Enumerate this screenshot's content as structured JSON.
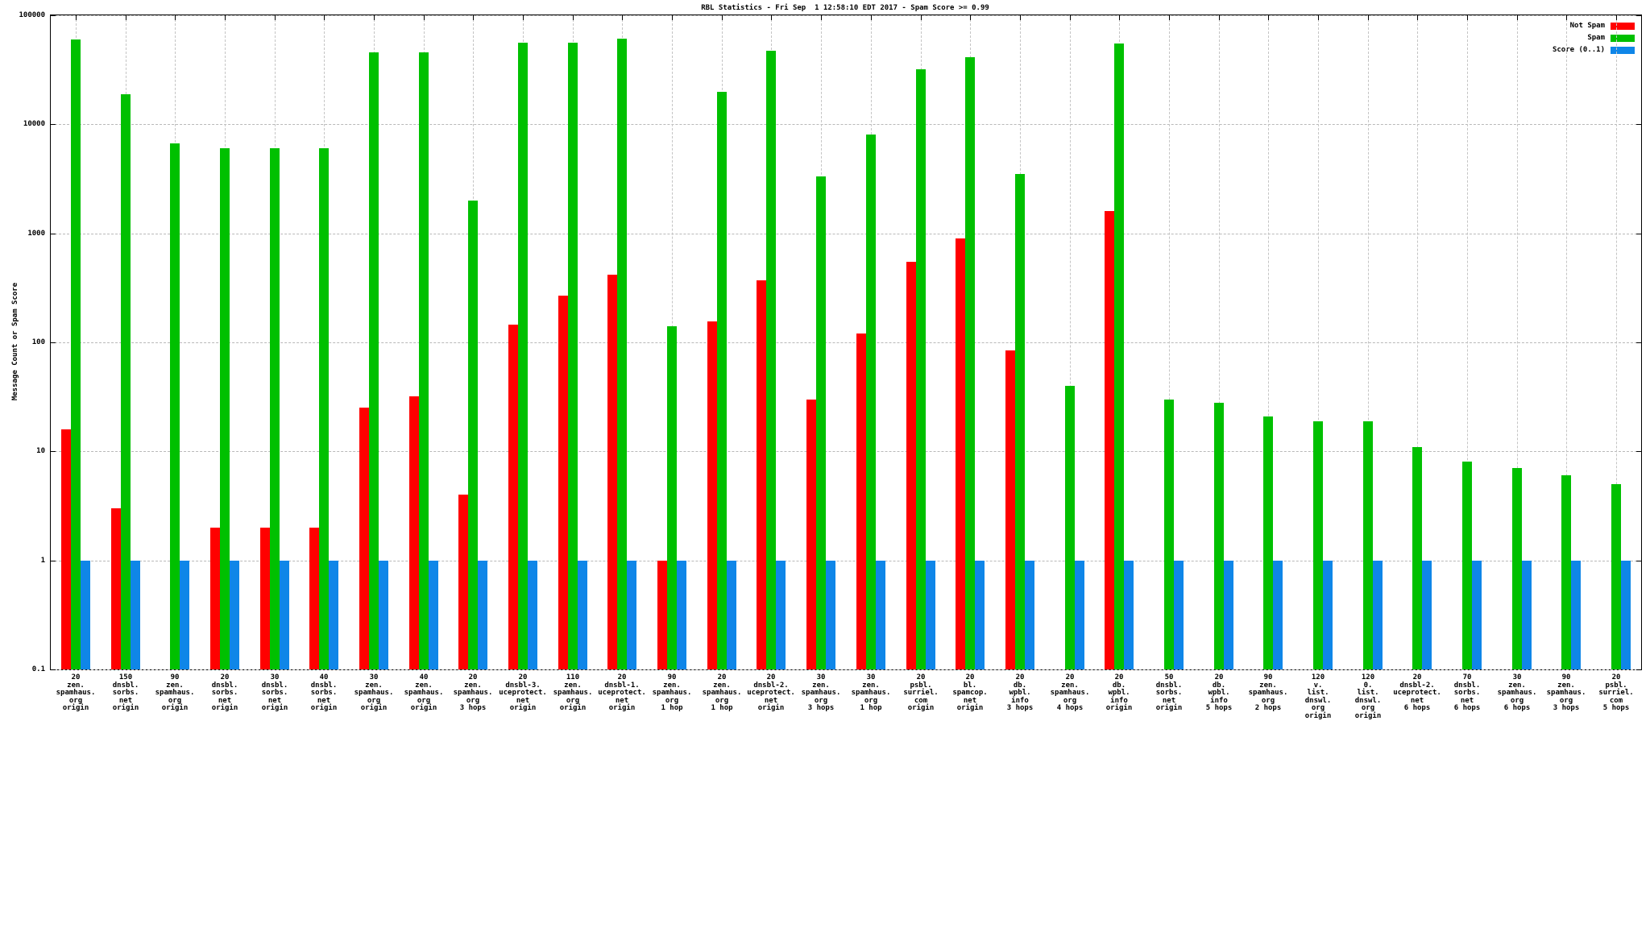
{
  "chart_data": {
    "type": "bar",
    "title": "RBL Statistics - Fri Sep  1 12:58:10 EDT 2017 - Spam Score >= 0.99",
    "ylabel": "Message Count or Spam Score",
    "yscale": "log",
    "ylim": [
      0.1,
      100000
    ],
    "yticks": [
      100000,
      10000,
      1000,
      100,
      10,
      1,
      0.1
    ],
    "grid": true,
    "legend_position": "top-right",
    "legend": [
      {
        "label": "Not Spam",
        "color": "#ff0000",
        "key": "not_spam"
      },
      {
        "label": "Spam",
        "color": "#00c000",
        "key": "spam"
      },
      {
        "label": "Score (0..1)",
        "color": "#0f86e8",
        "key": "score"
      }
    ],
    "groups": [
      {
        "label_lines": [
          "20",
          "zen.",
          "spamhaus.",
          "org",
          "origin"
        ],
        "not_spam": 16,
        "spam": 60000,
        "score": 1
      },
      {
        "label_lines": [
          "150",
          "dnsbl.",
          "sorbs.",
          "net",
          "origin"
        ],
        "not_spam": 3,
        "spam": 19000,
        "score": 1
      },
      {
        "label_lines": [
          "90",
          "zen.",
          "spamhaus.",
          "org",
          "origin"
        ],
        "not_spam": 0,
        "spam": 6700,
        "score": 1
      },
      {
        "label_lines": [
          "20",
          "dnsbl.",
          "sorbs.",
          "net",
          "origin"
        ],
        "not_spam": 2,
        "spam": 6000,
        "score": 1
      },
      {
        "label_lines": [
          "30",
          "dnsbl.",
          "sorbs.",
          "net",
          "origin"
        ],
        "not_spam": 2,
        "spam": 6000,
        "score": 1
      },
      {
        "label_lines": [
          "40",
          "dnsbl.",
          "sorbs.",
          "net",
          "origin"
        ],
        "not_spam": 2,
        "spam": 6000,
        "score": 1
      },
      {
        "label_lines": [
          "30",
          "zen.",
          "spamhaus.",
          "org",
          "origin"
        ],
        "not_spam": 25,
        "spam": 46000,
        "score": 1
      },
      {
        "label_lines": [
          "40",
          "zen.",
          "spamhaus.",
          "org",
          "origin"
        ],
        "not_spam": 32,
        "spam": 46000,
        "score": 1
      },
      {
        "label_lines": [
          "20",
          "zen.",
          "spamhaus.",
          "org",
          "3 hops"
        ],
        "not_spam": 4,
        "spam": 2000,
        "score": 1
      },
      {
        "label_lines": [
          "20",
          "dnsbl-3.",
          "uceprotect.",
          "net",
          "origin"
        ],
        "not_spam": 145,
        "spam": 56000,
        "score": 1
      },
      {
        "label_lines": [
          "110",
          "zen.",
          "spamhaus.",
          "org",
          "origin"
        ],
        "not_spam": 270,
        "spam": 56000,
        "score": 1
      },
      {
        "label_lines": [
          "20",
          "dnsbl-1.",
          "uceprotect.",
          "net",
          "origin"
        ],
        "not_spam": 420,
        "spam": 61000,
        "score": 1
      },
      {
        "label_lines": [
          "90",
          "zen.",
          "spamhaus.",
          "org",
          "1 hop"
        ],
        "not_spam": 1,
        "spam": 140,
        "score": 1
      },
      {
        "label_lines": [
          "20",
          "zen.",
          "spamhaus.",
          "org",
          "1 hop"
        ],
        "not_spam": 155,
        "spam": 20000,
        "score": 1
      },
      {
        "label_lines": [
          "20",
          "dnsbl-2.",
          "uceprotect.",
          "net",
          "origin"
        ],
        "not_spam": 370,
        "spam": 47000,
        "score": 1
      },
      {
        "label_lines": [
          "30",
          "zen.",
          "spamhaus.",
          "org",
          "3 hops"
        ],
        "not_spam": 30,
        "spam": 3300,
        "score": 1
      },
      {
        "label_lines": [
          "30",
          "zen.",
          "spamhaus.",
          "org",
          "1 hop"
        ],
        "not_spam": 120,
        "spam": 8000,
        "score": 1
      },
      {
        "label_lines": [
          "20",
          "psbl.",
          "surriel.",
          "com",
          "origin"
        ],
        "not_spam": 550,
        "spam": 32000,
        "score": 1
      },
      {
        "label_lines": [
          "20",
          "bl.",
          "spamcop.",
          "net",
          "origin"
        ],
        "not_spam": 900,
        "spam": 41000,
        "score": 1
      },
      {
        "label_lines": [
          "20",
          "db.",
          "wpbl.",
          "info",
          "3 hops"
        ],
        "not_spam": 85,
        "spam": 3500,
        "score": 1
      },
      {
        "label_lines": [
          "20",
          "zen.",
          "spamhaus.",
          "org",
          "4 hops"
        ],
        "not_spam": 0,
        "spam": 40,
        "score": 1
      },
      {
        "label_lines": [
          "20",
          "db.",
          "wpbl.",
          "info",
          "origin"
        ],
        "not_spam": 1600,
        "spam": 55000,
        "score": 1
      },
      {
        "label_lines": [
          "50",
          "dnsbl.",
          "sorbs.",
          "net",
          "origin"
        ],
        "not_spam": 0,
        "spam": 30,
        "score": 1
      },
      {
        "label_lines": [
          "20",
          "db.",
          "wpbl.",
          "info",
          "5 hops"
        ],
        "not_spam": 0,
        "spam": 28,
        "score": 1
      },
      {
        "label_lines": [
          "90",
          "zen.",
          "spamhaus.",
          "org",
          "2 hops"
        ],
        "not_spam": 0,
        "spam": 21,
        "score": 1
      },
      {
        "label_lines": [
          "120",
          "v.",
          "list.",
          "dnswl.",
          "org",
          "origin"
        ],
        "not_spam": 0,
        "spam": 19,
        "score": 1
      },
      {
        "label_lines": [
          "120",
          "0.",
          "list.",
          "dnswl.",
          "org",
          "origin"
        ],
        "not_spam": 0,
        "spam": 19,
        "score": 1
      },
      {
        "label_lines": [
          "20",
          "dnsbl-2.",
          "uceprotect.",
          "net",
          "6 hops"
        ],
        "not_spam": 0,
        "spam": 11,
        "score": 1
      },
      {
        "label_lines": [
          "70",
          "dnsbl.",
          "sorbs.",
          "net",
          "6 hops"
        ],
        "not_spam": 0,
        "spam": 8,
        "score": 1
      },
      {
        "label_lines": [
          "30",
          "zen.",
          "spamhaus.",
          "org",
          "6 hops"
        ],
        "not_spam": 0,
        "spam": 7,
        "score": 1
      },
      {
        "label_lines": [
          "90",
          "zen.",
          "spamhaus.",
          "org",
          "3 hops"
        ],
        "not_spam": 0,
        "spam": 6,
        "score": 1
      },
      {
        "label_lines": [
          "20",
          "psbl.",
          "surriel.",
          "com",
          "5 hops"
        ],
        "not_spam": 0,
        "spam": 5,
        "score": 1
      }
    ]
  }
}
